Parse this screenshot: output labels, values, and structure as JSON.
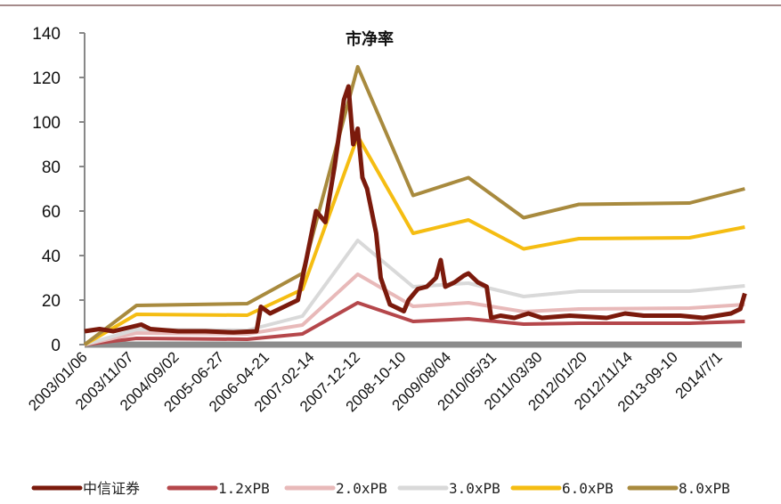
{
  "chart_data": {
    "type": "line",
    "title": "市净率",
    "xlabel": "",
    "ylabel": "",
    "ylim": [
      0,
      140
    ],
    "yticks": [
      0,
      20,
      40,
      60,
      80,
      100,
      120,
      140
    ],
    "x_tick_labels": [
      "2003/01/06",
      "2003/11/07",
      "2004/09/02",
      "2005-06-27",
      "2006-04-21",
      "2007-02-14",
      "2007-12-12",
      "2008-10-10",
      "2009/08/04",
      "2010/05/31",
      "2011/03/30",
      "2012/01/20",
      "2012/11/14",
      "2013-09-10",
      "2014/7/1"
    ],
    "x_tick_dates": [
      "2003-01-06",
      "2003-11-07",
      "2004-09-02",
      "2005-06-27",
      "2006-04-21",
      "2007-02-14",
      "2007-12-12",
      "2008-10-10",
      "2009-08-04",
      "2010-05-31",
      "2011-03-30",
      "2012-01-20",
      "2012-11-14",
      "2013-09-10",
      "2014-07-01"
    ],
    "grid": false,
    "legend_position": "bottom",
    "series": [
      {
        "name": "中信证券",
        "color": "#7b1a0c",
        "width": 5,
        "x": [
          "2003-01",
          "2003-04",
          "2003-07",
          "2003-11",
          "2004-01",
          "2004-03",
          "2004-09",
          "2005-03",
          "2005-09",
          "2006-02",
          "2006-03",
          "2006-05",
          "2006-08",
          "2006-11",
          "2007-01",
          "2007-03",
          "2007-05",
          "2007-07",
          "2007-09",
          "2007-10",
          "2007-11",
          "2007-12",
          "2008-01",
          "2008-02",
          "2008-04",
          "2008-05",
          "2008-07",
          "2008-08",
          "2008-10",
          "2008-11",
          "2009-01",
          "2009-03",
          "2009-05",
          "2009-06",
          "2009-07",
          "2009-09",
          "2009-11",
          "2009-12",
          "2010-02",
          "2010-04",
          "2010-05",
          "2010-07",
          "2010-10",
          "2011-01",
          "2011-04",
          "2011-10",
          "2012-06",
          "2012-10",
          "2013-02",
          "2013-10",
          "2014-03",
          "2014-09",
          "2014-11",
          "2014-12"
        ],
        "y": [
          6,
          7,
          6,
          8,
          9,
          7,
          6,
          6,
          5.5,
          6,
          17,
          14,
          17,
          20,
          40,
          60,
          55,
          80,
          110,
          116,
          90,
          97,
          75,
          70,
          50,
          30,
          18,
          17,
          15,
          20,
          25,
          26,
          30,
          38,
          26,
          28,
          31,
          32,
          28,
          26,
          12,
          13,
          12,
          14,
          12,
          13,
          12,
          14,
          13,
          13,
          12,
          14,
          16,
          23
        ]
      },
      {
        "name": "1.2xPB",
        "color": "#b5474b",
        "width": 4,
        "x": [
          "2003-01",
          "2003-12",
          "2005-12",
          "2006-12",
          "2007-12",
          "2008-12",
          "2009-12",
          "2010-12",
          "2011-12",
          "2013-12",
          "2014-12"
        ],
        "y": [
          0,
          2.8,
          2.4,
          4.8,
          18.8,
          10.4,
          11.6,
          9.2,
          9.6,
          9.6,
          10.4
        ]
      },
      {
        "name": "2.0xPB",
        "color": "#e8b9b9",
        "width": 4,
        "x": [
          "2003-01",
          "2003-12",
          "2005-12",
          "2006-12",
          "2007-12",
          "2008-12",
          "2009-12",
          "2010-12",
          "2011-12",
          "2013-12",
          "2014-12"
        ],
        "y": [
          0,
          5.2,
          4.8,
          8.8,
          31.6,
          17.2,
          18.8,
          14.8,
          16,
          16.4,
          18
        ]
      },
      {
        "name": "3.0xPB",
        "color": "#d9d9d9",
        "width": 4,
        "x": [
          "2003-01",
          "2003-12",
          "2005-12",
          "2006-12",
          "2007-12",
          "2008-12",
          "2009-12",
          "2010-12",
          "2011-12",
          "2013-12",
          "2014-12"
        ],
        "y": [
          0,
          6.8,
          6.4,
          12.8,
          46.8,
          26,
          27.6,
          21.6,
          24,
          24,
          26.4
        ]
      },
      {
        "name": "6.0xPB",
        "color": "#f5bd12",
        "width": 4,
        "x": [
          "2003-01",
          "2003-12",
          "2005-12",
          "2006-12",
          "2007-12",
          "2008-12",
          "2009-12",
          "2010-12",
          "2011-12",
          "2013-12",
          "2014-12"
        ],
        "y": [
          0,
          13.6,
          13.2,
          24.8,
          93.6,
          50,
          56,
          43,
          47.6,
          48,
          52.8
        ]
      },
      {
        "name": "8.0xPB",
        "color": "#a88a3e",
        "width": 4,
        "x": [
          "2003-01",
          "2003-12",
          "2005-12",
          "2006-12",
          "2007-12",
          "2008-12",
          "2009-12",
          "2010-12",
          "2011-12",
          "2013-12",
          "2014-12"
        ],
        "y": [
          0,
          17.6,
          18.4,
          32,
          124.8,
          67,
          75,
          57,
          63,
          63.6,
          70
        ]
      }
    ],
    "zero_line_color": "#8c8c8c"
  }
}
